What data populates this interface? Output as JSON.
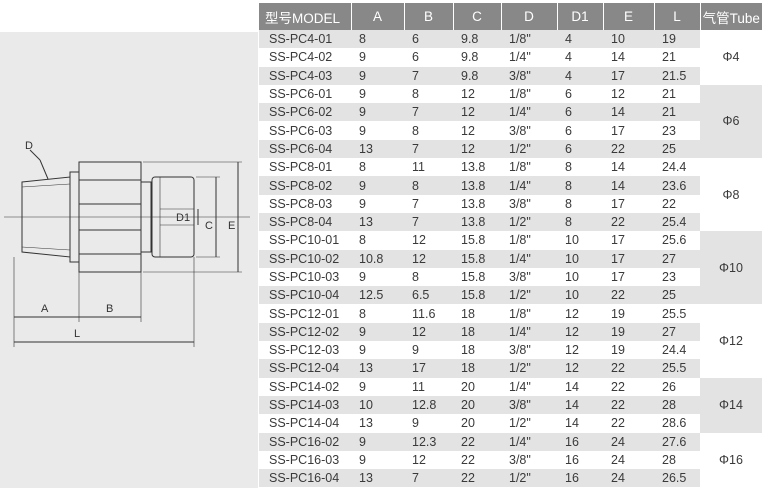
{
  "header": {
    "model": "型号MODEL",
    "a": "A",
    "b": "B",
    "c": "C",
    "d": "D",
    "d1": "D1",
    "e": "E",
    "l": "L",
    "tube": "气管Tube"
  },
  "drawing": {
    "label_d": "D",
    "label_d1": "D1",
    "label_c": "C",
    "label_e": "E",
    "label_a": "A",
    "label_b": "B",
    "label_l": "L"
  },
  "groups": [
    {
      "tube": "Φ4",
      "rows": [
        {
          "model": "SS-PC4-01",
          "a": "8",
          "b": "6",
          "c": "9.8",
          "d": "1/8\"",
          "d1": "4",
          "e": "10",
          "l": "19"
        },
        {
          "model": "SS-PC4-02",
          "a": "9",
          "b": "6",
          "c": "9.8",
          "d": "1/4\"",
          "d1": "4",
          "e": "14",
          "l": "21"
        },
        {
          "model": "SS-PC4-03",
          "a": "9",
          "b": "7",
          "c": "9.8",
          "d": "3/8\"",
          "d1": "4",
          "e": "17",
          "l": "21.5"
        }
      ]
    },
    {
      "tube": "Φ6",
      "rows": [
        {
          "model": "SS-PC6-01",
          "a": "9",
          "b": "8",
          "c": "12",
          "d": "1/8\"",
          "d1": "6",
          "e": "12",
          "l": "21"
        },
        {
          "model": "SS-PC6-02",
          "a": "9",
          "b": "7",
          "c": "12",
          "d": "1/4\"",
          "d1": "6",
          "e": "14",
          "l": "21"
        },
        {
          "model": "SS-PC6-03",
          "a": "9",
          "b": "8",
          "c": "12",
          "d": "3/8\"",
          "d1": "6",
          "e": "17",
          "l": "23"
        },
        {
          "model": "SS-PC6-04",
          "a": "13",
          "b": "7",
          "c": "12",
          "d": "1/2\"",
          "d1": "6",
          "e": "22",
          "l": "25"
        }
      ]
    },
    {
      "tube": "Φ8",
      "rows": [
        {
          "model": "SS-PC8-01",
          "a": "8",
          "b": "11",
          "c": "13.8",
          "d": "1/8\"",
          "d1": "8",
          "e": "14",
          "l": "24.4"
        },
        {
          "model": "SS-PC8-02",
          "a": "9",
          "b": "8",
          "c": "13.8",
          "d": "1/4\"",
          "d1": "8",
          "e": "14",
          "l": "23.6"
        },
        {
          "model": "SS-PC8-03",
          "a": "9",
          "b": "7",
          "c": "13.8",
          "d": "3/8\"",
          "d1": "8",
          "e": "17",
          "l": "22"
        },
        {
          "model": "SS-PC8-04",
          "a": "13",
          "b": "7",
          "c": "13.8",
          "d": "1/2\"",
          "d1": "8",
          "e": "22",
          "l": "25.4"
        }
      ]
    },
    {
      "tube": "Φ10",
      "rows": [
        {
          "model": "SS-PC10-01",
          "a": "8",
          "b": "12",
          "c": "15.8",
          "d": "1/8\"",
          "d1": "10",
          "e": "17",
          "l": "25.6"
        },
        {
          "model": "SS-PC10-02",
          "a": "10.8",
          "b": "12",
          "c": "15.8",
          "d": "1/4\"",
          "d1": "10",
          "e": "17",
          "l": "27"
        },
        {
          "model": "SS-PC10-03",
          "a": "9",
          "b": "8",
          "c": "15.8",
          "d": "3/8\"",
          "d1": "10",
          "e": "17",
          "l": "23"
        },
        {
          "model": "SS-PC10-04",
          "a": "12.5",
          "b": "6.5",
          "c": "15.8",
          "d": "1/2\"",
          "d1": "10",
          "e": "22",
          "l": "25"
        }
      ]
    },
    {
      "tube": "Φ12",
      "rows": [
        {
          "model": "SS-PC12-01",
          "a": "8",
          "b": "11.6",
          "c": "18",
          "d": "1/8\"",
          "d1": "12",
          "e": "19",
          "l": "25.5"
        },
        {
          "model": "SS-PC12-02",
          "a": "9",
          "b": "12",
          "c": "18",
          "d": "1/4\"",
          "d1": "12",
          "e": "19",
          "l": "27"
        },
        {
          "model": "SS-PC12-03",
          "a": "9",
          "b": "9",
          "c": "18",
          "d": "3/8\"",
          "d1": "12",
          "e": "19",
          "l": "24.4"
        },
        {
          "model": "SS-PC12-04",
          "a": "13",
          "b": "17",
          "c": "18",
          "d": "1/2\"",
          "d1": "12",
          "e": "22",
          "l": "25.5"
        }
      ]
    },
    {
      "tube": "Φ14",
      "rows": [
        {
          "model": "SS-PC14-02",
          "a": "9",
          "b": "11",
          "c": "20",
          "d": "1/4\"",
          "d1": "14",
          "e": "22",
          "l": "26"
        },
        {
          "model": "SS-PC14-03",
          "a": "10",
          "b": "12.8",
          "c": "20",
          "d": "3/8\"",
          "d1": "14",
          "e": "22",
          "l": "28"
        },
        {
          "model": "SS-PC14-04",
          "a": "13",
          "b": "9",
          "c": "20",
          "d": "1/2\"",
          "d1": "14",
          "e": "22",
          "l": "28.6"
        }
      ]
    },
    {
      "tube": "Φ16",
      "rows": [
        {
          "model": "SS-PC16-02",
          "a": "9",
          "b": "12.3",
          "c": "22",
          "d": "1/4\"",
          "d1": "16",
          "e": "24",
          "l": "27.6"
        },
        {
          "model": "SS-PC16-03",
          "a": "9",
          "b": "12",
          "c": "22",
          "d": "3/8\"",
          "d1": "16",
          "e": "24",
          "l": "28"
        },
        {
          "model": "SS-PC16-04",
          "a": "13",
          "b": "7",
          "c": "22",
          "d": "1/2\"",
          "d1": "16",
          "e": "24",
          "l": "26.5"
        }
      ]
    }
  ]
}
